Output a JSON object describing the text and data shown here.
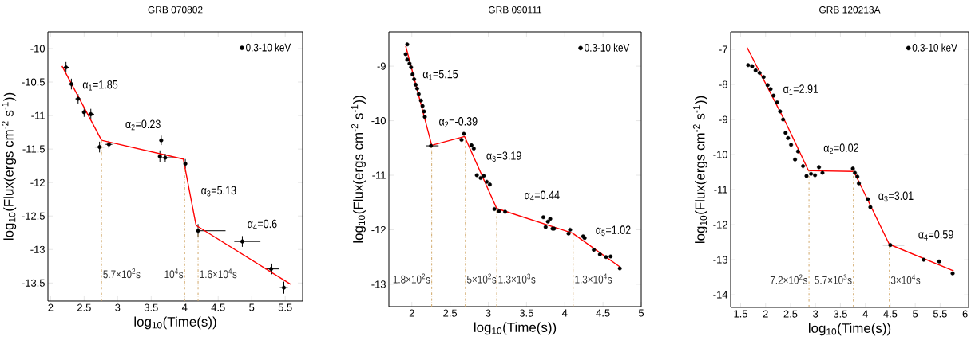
{
  "chart_data": [
    {
      "type": "scatter",
      "title": "GRB 070802",
      "xlabel": "log$_{10}$(Time(s))",
      "ylabel": "log$_{10}$(Flux(ergs cm$^{-2}$ s$^{-1}$))",
      "xlim": [
        1.96,
        5.76
      ],
      "ylim": [
        -13.77,
        -9.75
      ],
      "xticks": [
        2,
        2.5,
        3,
        3.5,
        4,
        4.5,
        5,
        5.5
      ],
      "yticks": [
        -10,
        -10.5,
        -11,
        -11.5,
        -12,
        -12.5,
        -13,
        -13.5
      ],
      "legend": "top right",
      "series": [
        {
          "name": "0.3-10 keV",
          "color": "#000000",
          "marker": "circle",
          "x": [
            2.23,
            2.31,
            2.41,
            2.5,
            2.6,
            2.73,
            2.87,
            3.65,
            3.63,
            3.71,
            4.01,
            4.2,
            4.86,
            5.29,
            5.48
          ],
          "values": [
            -10.28,
            -10.53,
            -10.75,
            -10.95,
            -10.98,
            -11.47,
            -11.43,
            -11.37,
            -11.61,
            -11.63,
            -11.72,
            -12.72,
            -12.88,
            -13.29,
            -13.57
          ],
          "errors": [
            0.08,
            0.08,
            0.07,
            0.07,
            0.08,
            0.08,
            0.06,
            0.07,
            0.09,
            0.06,
            0.07,
            0.1,
            0.08,
            0.08,
            0.09
          ],
          "xerrors": [
            0.04,
            0.05,
            0.04,
            0.03,
            0.05,
            0.07,
            0.05,
            null,
            null,
            [
              3.63,
              3.84
            ],
            null,
            [
              4.18,
              4.61
            ],
            [
              4.74,
              5.13
            ],
            [
              5.2,
              5.41
            ],
            0.06
          ]
        },
        {
          "type": "line",
          "color": "#ff0000",
          "line_style": "solid",
          "x": [
            2.17,
            2.76,
            3.98,
            4.17,
            5.58
          ],
          "values": [
            -10.26,
            -11.37,
            -11.65,
            -12.64,
            -13.52
          ]
        }
      ],
      "ref_lines": [
        {
          "axis": "x",
          "value": 2.76,
          "label": "5.7×10$^{2}$s",
          "color": "#d2a96a",
          "line_style": "dashdot"
        },
        {
          "axis": "x",
          "value": 4.0,
          "label": "10$^{4}$s",
          "color": "#d2a96a",
          "line_style": "dashdot"
        },
        {
          "axis": "x",
          "value": 4.2,
          "label": "1.6×10$^{4}$s",
          "color": "#d2a96a",
          "line_style": "dashdot"
        }
      ],
      "annotations": [
        "α$_{1}$=1.85",
        "α$_{2}$=0.23",
        "α$_{3}$=5.13",
        "α$_{4}$=0.6"
      ]
    },
    {
      "type": "scatter",
      "title": "GRB 090111",
      "xlabel": "log$_{10}$(Time(s))",
      "ylabel": "log$_{10}$(Flux(ergs cm$^{-2}$ s$^{-1}$))",
      "xlim": [
        1.7,
        5.0
      ],
      "ylim": [
        -13.41,
        -8.37
      ],
      "xticks": [
        2,
        2.5,
        3,
        3.5,
        4,
        4.5,
        5
      ],
      "yticks": [
        -9,
        -10,
        -11,
        -12,
        -13
      ],
      "legend": "top right",
      "series": [
        {
          "name": "0.3-10 keV",
          "color": "#000000",
          "marker": "circle",
          "x": [
            1.92,
            1.94,
            1.94,
            1.97,
            1.99,
            2.01,
            2.03,
            2.05,
            2.07,
            2.09,
            2.12,
            2.14,
            2.16,
            2.17,
            2.25,
            2.65,
            2.68,
            2.78,
            2.81,
            2.85,
            2.9,
            2.94,
            2.98,
            3.02,
            3.08,
            3.14,
            3.22,
            3.72,
            3.75,
            3.78,
            3.81,
            3.84,
            3.86,
            4.05,
            4.07,
            4.24,
            4.26,
            4.38,
            4.46,
            4.54,
            4.6,
            4.72
          ],
          "values": [
            -8.78,
            -8.6,
            -8.88,
            -8.95,
            -9.02,
            -9.15,
            -9.24,
            -9.34,
            -9.41,
            -9.51,
            -9.63,
            -9.73,
            -9.83,
            -9.93,
            -10.46,
            -10.35,
            -10.24,
            -10.45,
            -10.51,
            -11.0,
            -11.05,
            -11.01,
            -11.12,
            -11.17,
            -11.62,
            -11.66,
            -11.67,
            -11.77,
            -11.95,
            -11.85,
            -11.8,
            -11.98,
            -11.98,
            -12.07,
            -12.0,
            -12.12,
            -12.15,
            -12.37,
            -12.45,
            -12.5,
            -12.49,
            -12.71
          ],
          "xerrors": [
            null,
            null,
            null,
            null,
            null,
            null,
            null,
            null,
            null,
            null,
            null,
            null,
            null,
            null,
            [
              2.19,
              2.35
            ],
            null,
            null,
            null,
            null,
            null,
            null,
            null,
            null,
            null,
            null,
            null,
            null,
            null,
            null,
            null,
            null,
            null,
            null,
            null,
            null,
            null,
            null,
            null,
            null,
            null,
            null,
            null
          ]
        },
        {
          "type": "line",
          "color": "#ff0000",
          "line_style": "solid",
          "x": [
            1.92,
            2.26,
            2.69,
            3.11,
            4.1,
            4.72
          ],
          "values": [
            -8.63,
            -10.45,
            -10.29,
            -11.61,
            -12.06,
            -12.68
          ]
        }
      ],
      "ref_lines": [
        {
          "axis": "x",
          "value": 2.26,
          "label": "1.8×10$^{2}$s",
          "color": "#d2a96a",
          "line_style": "dashdot"
        },
        {
          "axis": "x",
          "value": 2.7,
          "label": "5×10$^{2}$s",
          "color": "#d2a96a",
          "line_style": "dashdot"
        },
        {
          "axis": "x",
          "value": 3.11,
          "label": "1.3×10$^{3}$s",
          "color": "#d2a96a",
          "line_style": "dashdot"
        },
        {
          "axis": "x",
          "value": 4.11,
          "label": "1.3×10$^{4}$s",
          "color": "#d2a96a",
          "line_style": "dashdot"
        }
      ],
      "annotations": [
        "α$_{1}$=5.15",
        "α$_{2}$=-0.39",
        "α$_{3}$=3.19",
        "α$_{4}$=0.44",
        "α$_{5}$=1.02"
      ]
    },
    {
      "type": "scatter",
      "title": "GRB 120213A",
      "xlabel": "log$_{10}$(Time(s))",
      "ylabel": "log$_{10}$(Flux(ergs cm$^{-2}$ s$^{-1}$))",
      "xlim": [
        1.3,
        6.07
      ],
      "ylim": [
        -14.36,
        -6.5
      ],
      "xticks": [
        1.5,
        2,
        2.5,
        3,
        3.5,
        4,
        4.5,
        5,
        5.5,
        6
      ],
      "yticks": [
        -7,
        -8,
        -9,
        -10,
        -11,
        -12,
        -13,
        -14
      ],
      "legend": "top right",
      "series": [
        {
          "name": "0.3-10 keV",
          "color": "#000000",
          "marker": "circle",
          "x": [
            1.65,
            1.73,
            1.8,
            1.88,
            1.96,
            2.04,
            2.1,
            2.16,
            2.23,
            2.29,
            2.35,
            2.4,
            2.45,
            2.51,
            2.59,
            2.65,
            2.75,
            2.82,
            2.91,
            2.99,
            3.07,
            3.14,
            3.75,
            3.79,
            3.84,
            3.87,
            4.05,
            4.1,
            4.5,
            5.17,
            5.48,
            5.75
          ],
          "values": [
            -7.45,
            -7.48,
            -7.6,
            -7.67,
            -7.79,
            -8.02,
            -8.13,
            -8.32,
            -8.51,
            -8.77,
            -9.0,
            -9.38,
            -9.53,
            -9.72,
            -10.14,
            -9.91,
            -10.33,
            -10.61,
            -10.55,
            -10.59,
            -10.36,
            -10.52,
            -10.4,
            -10.52,
            -10.63,
            -10.82,
            -11.27,
            -11.5,
            -12.58,
            -13.0,
            -13.05,
            -13.39
          ],
          "xerrors": [
            null,
            null,
            null,
            null,
            null,
            null,
            null,
            null,
            null,
            null,
            null,
            null,
            null,
            null,
            null,
            null,
            null,
            null,
            null,
            null,
            null,
            null,
            null,
            null,
            null,
            null,
            null,
            null,
            [
              4.35,
              4.78
            ],
            null,
            null,
            null
          ]
        },
        {
          "type": "line",
          "color": "#ff0000",
          "line_style": "solid",
          "x": [
            1.63,
            2.4,
            2.86,
            3.77,
            4.48,
            5.77
          ],
          "values": [
            -6.95,
            -9.08,
            -10.46,
            -10.48,
            -12.56,
            -13.32
          ]
        }
      ],
      "ref_lines": [
        {
          "axis": "x",
          "value": 2.87,
          "label": "7.2×10$^{2}$s",
          "color": "#d2a96a",
          "line_style": "dashdot"
        },
        {
          "axis": "x",
          "value": 3.76,
          "label": "5.7×10$^{3}$s",
          "color": "#d2a96a",
          "line_style": "dashdot"
        },
        {
          "axis": "x",
          "value": 4.48,
          "label": "3×10$^{4}$s",
          "color": "#d2a96a",
          "line_style": "dashdot"
        }
      ],
      "annotations": [
        "α$_{1}$=2.91",
        "α$_{2}$=0.02",
        "α$_{3}$=3.01",
        "α$_{4}$=0.59"
      ]
    }
  ]
}
